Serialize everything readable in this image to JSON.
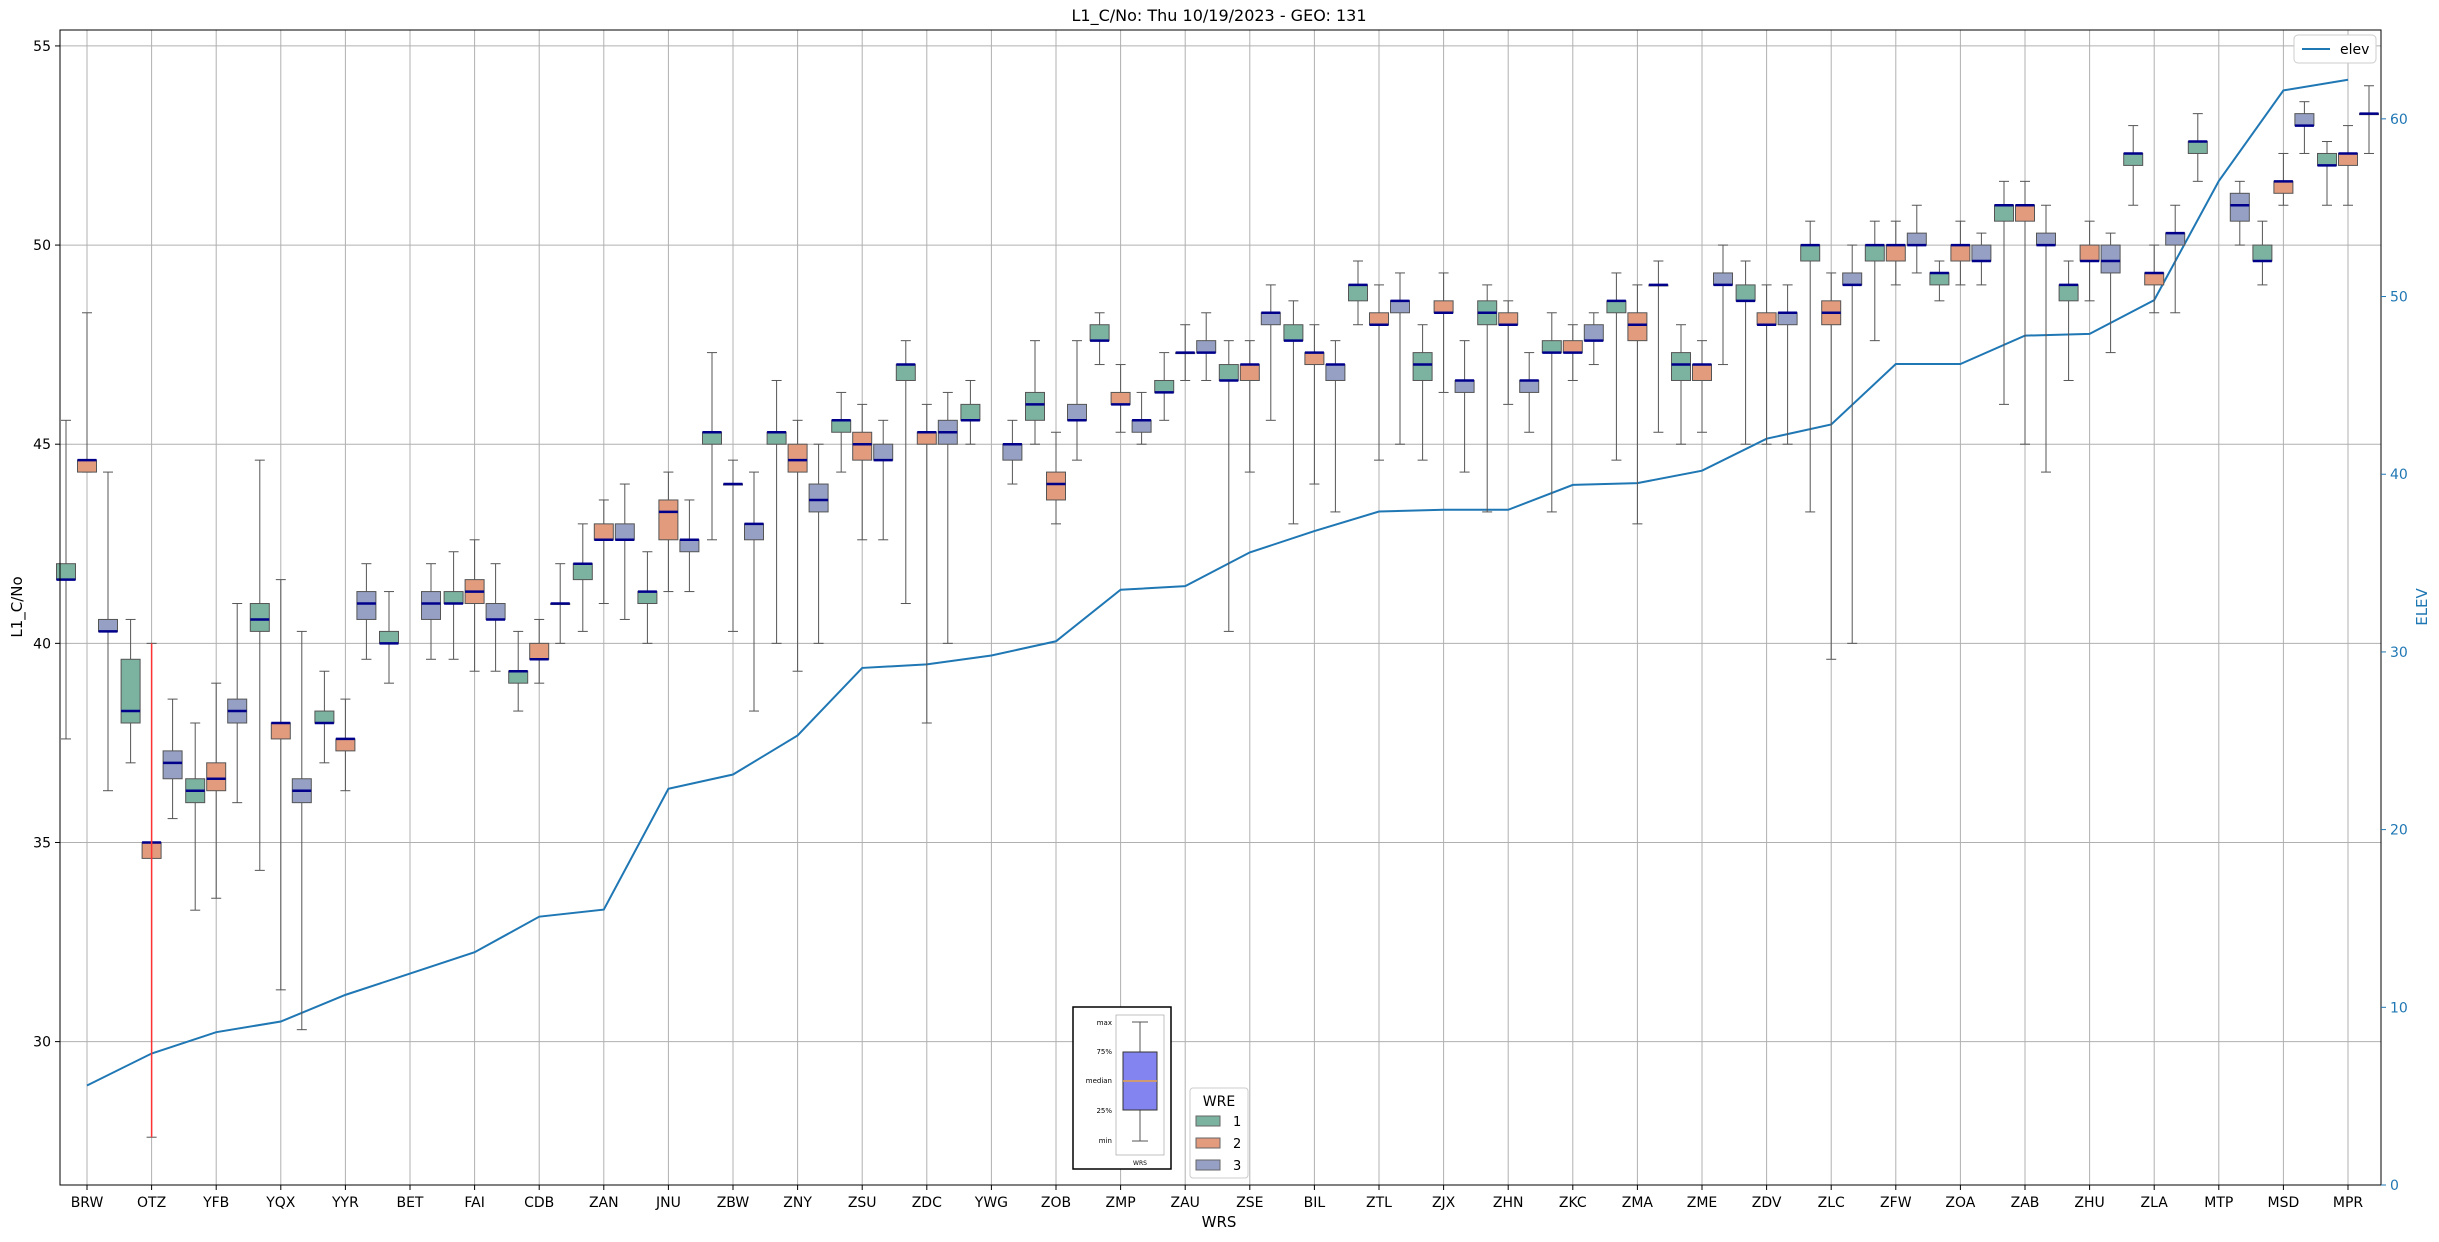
{
  "chart_data": {
    "type": "box",
    "title": "L1_C/No: Thu 10/19/2023 - GEO: 131",
    "xlabel": "WRS",
    "ylabel": "L1_C/No",
    "y2label": "ELEV",
    "ylim": [
      26.4,
      55.4
    ],
    "y2lim": [
      0,
      65
    ],
    "yticks": [
      30,
      35,
      40,
      45,
      50,
      55
    ],
    "y2ticks": [
      0,
      10,
      20,
      30,
      40,
      50,
      60
    ],
    "grid": true,
    "categories": [
      "BRW",
      "OTZ",
      "YFB",
      "YQX",
      "YYR",
      "BET",
      "FAI",
      "CDB",
      "ZAN",
      "JNU",
      "ZBW",
      "ZNY",
      "ZSU",
      "ZDC",
      "YWG",
      "ZOB",
      "ZMP",
      "ZAU",
      "ZSE",
      "BIL",
      "ZTL",
      "ZJX",
      "ZHN",
      "ZKC",
      "ZMA",
      "ZME",
      "ZDV",
      "ZLC",
      "ZFW",
      "ZOA",
      "ZAB",
      "ZHU",
      "ZLA",
      "MTP",
      "MSD",
      "MPR"
    ],
    "series_colors": {
      "1": "#7bb3a0",
      "2": "#e39b7d",
      "3": "#95a0c4"
    },
    "boxes": [
      {
        "station": "BRW",
        "wre": "1",
        "min": 37.6,
        "q1": 41.6,
        "median": 41.6,
        "q3": 42.0,
        "max": 45.6
      },
      {
        "station": "BRW",
        "wre": "2",
        "min": 44.3,
        "q1": 44.3,
        "median": 44.6,
        "q3": 44.6,
        "max": 48.3
      },
      {
        "station": "BRW",
        "wre": "3",
        "min": 36.3,
        "q1": 40.3,
        "median": 40.3,
        "q3": 40.6,
        "max": 44.3
      },
      {
        "station": "OTZ",
        "wre": "1",
        "min": 37.0,
        "q1": 38.0,
        "median": 38.3,
        "q3": 39.6,
        "max": 40.6
      },
      {
        "station": "OTZ",
        "wre": "2",
        "min": 27.6,
        "q1": 34.6,
        "median": 35.0,
        "q3": 35.0,
        "max": 40.0
      },
      {
        "station": "OTZ",
        "wre": "3",
        "min": 35.6,
        "q1": 36.6,
        "median": 37.0,
        "q3": 37.3,
        "max": 38.6
      },
      {
        "station": "YFB",
        "wre": "1",
        "min": 33.3,
        "q1": 36.0,
        "median": 36.3,
        "q3": 36.6,
        "max": 38.0
      },
      {
        "station": "YFB",
        "wre": "2",
        "min": 33.6,
        "q1": 36.3,
        "median": 36.6,
        "q3": 37.0,
        "max": 39.0
      },
      {
        "station": "YFB",
        "wre": "3",
        "min": 36.0,
        "q1": 38.0,
        "median": 38.3,
        "q3": 38.6,
        "max": 41.0
      },
      {
        "station": "YQX",
        "wre": "1",
        "min": 34.3,
        "q1": 40.3,
        "median": 40.6,
        "q3": 41.0,
        "max": 44.6
      },
      {
        "station": "YQX",
        "wre": "2",
        "min": 31.3,
        "q1": 37.6,
        "median": 38.0,
        "q3": 38.0,
        "max": 41.6
      },
      {
        "station": "YQX",
        "wre": "3",
        "min": 30.3,
        "q1": 36.0,
        "median": 36.3,
        "q3": 36.6,
        "max": 40.3
      },
      {
        "station": "YYR",
        "wre": "1",
        "min": 37.0,
        "q1": 38.0,
        "median": 38.0,
        "q3": 38.3,
        "max": 39.3
      },
      {
        "station": "YYR",
        "wre": "2",
        "min": 36.3,
        "q1": 37.3,
        "median": 37.6,
        "q3": 37.6,
        "max": 38.6
      },
      {
        "station": "YYR",
        "wre": "3",
        "min": 39.6,
        "q1": 40.6,
        "median": 41.0,
        "q3": 41.3,
        "max": 42.0
      },
      {
        "station": "BET",
        "wre": "1",
        "min": 39.0,
        "q1": 40.0,
        "median": 40.0,
        "q3": 40.3,
        "max": 41.3
      },
      {
        "station": "BET",
        "wre": "3",
        "min": 39.6,
        "q1": 40.6,
        "median": 41.0,
        "q3": 41.3,
        "max": 42.0
      },
      {
        "station": "FAI",
        "wre": "1",
        "min": 39.6,
        "q1": 41.0,
        "median": 41.0,
        "q3": 41.3,
        "max": 42.3
      },
      {
        "station": "FAI",
        "wre": "2",
        "min": 39.3,
        "q1": 41.0,
        "median": 41.3,
        "q3": 41.6,
        "max": 42.6
      },
      {
        "station": "FAI",
        "wre": "3",
        "min": 39.3,
        "q1": 40.6,
        "median": 40.6,
        "q3": 41.0,
        "max": 42.0
      },
      {
        "station": "CDB",
        "wre": "1",
        "min": 38.3,
        "q1": 39.0,
        "median": 39.3,
        "q3": 39.3,
        "max": 40.3
      },
      {
        "station": "CDB",
        "wre": "2",
        "min": 39.0,
        "q1": 39.6,
        "median": 39.6,
        "q3": 40.0,
        "max": 40.6
      },
      {
        "station": "CDB",
        "wre": "3",
        "min": 40.0,
        "q1": 41.0,
        "median": 41.0,
        "q3": 41.0,
        "max": 42.0
      },
      {
        "station": "ZAN",
        "wre": "1",
        "min": 40.3,
        "q1": 41.6,
        "median": 42.0,
        "q3": 42.0,
        "max": 43.0
      },
      {
        "station": "ZAN",
        "wre": "2",
        "min": 41.0,
        "q1": 42.6,
        "median": 42.6,
        "q3": 43.0,
        "max": 43.6
      },
      {
        "station": "ZAN",
        "wre": "3",
        "min": 40.6,
        "q1": 42.6,
        "median": 42.6,
        "q3": 43.0,
        "max": 44.0
      },
      {
        "station": "JNU",
        "wre": "1",
        "min": 40.0,
        "q1": 41.0,
        "median": 41.3,
        "q3": 41.3,
        "max": 42.3
      },
      {
        "station": "JNU",
        "wre": "2",
        "min": 41.3,
        "q1": 42.6,
        "median": 43.3,
        "q3": 43.6,
        "max": 44.3
      },
      {
        "station": "JNU",
        "wre": "3",
        "min": 41.3,
        "q1": 42.3,
        "median": 42.6,
        "q3": 42.6,
        "max": 43.6
      },
      {
        "station": "ZBW",
        "wre": "1",
        "min": 42.6,
        "q1": 45.0,
        "median": 45.3,
        "q3": 45.3,
        "max": 47.3
      },
      {
        "station": "ZBW",
        "wre": "2",
        "min": 40.3,
        "q1": 44.0,
        "median": 44.0,
        "q3": 44.0,
        "max": 44.6
      },
      {
        "station": "ZBW",
        "wre": "3",
        "min": 38.3,
        "q1": 42.6,
        "median": 43.0,
        "q3": 43.0,
        "max": 44.3
      },
      {
        "station": "ZNY",
        "wre": "1",
        "min": 40.0,
        "q1": 45.0,
        "median": 45.3,
        "q3": 45.3,
        "max": 46.6
      },
      {
        "station": "ZNY",
        "wre": "2",
        "min": 39.3,
        "q1": 44.3,
        "median": 44.6,
        "q3": 45.0,
        "max": 45.6
      },
      {
        "station": "ZNY",
        "wre": "3",
        "min": 40.0,
        "q1": 43.3,
        "median": 43.6,
        "q3": 44.0,
        "max": 45.0
      },
      {
        "station": "ZSU",
        "wre": "1",
        "min": 44.3,
        "q1": 45.3,
        "median": 45.6,
        "q3": 45.6,
        "max": 46.3
      },
      {
        "station": "ZSU",
        "wre": "2",
        "min": 42.6,
        "q1": 44.6,
        "median": 45.0,
        "q3": 45.3,
        "max": 46.0
      },
      {
        "station": "ZSU",
        "wre": "3",
        "min": 42.6,
        "q1": 44.6,
        "median": 44.6,
        "q3": 45.0,
        "max": 45.6
      },
      {
        "station": "ZDC",
        "wre": "1",
        "min": 41.0,
        "q1": 46.6,
        "median": 47.0,
        "q3": 47.0,
        "max": 47.6
      },
      {
        "station": "ZDC",
        "wre": "2",
        "min": 38.0,
        "q1": 45.0,
        "median": 45.3,
        "q3": 45.3,
        "max": 46.0
      },
      {
        "station": "ZDC",
        "wre": "3",
        "min": 40.0,
        "q1": 45.0,
        "median": 45.3,
        "q3": 45.6,
        "max": 46.3
      },
      {
        "station": "YWG",
        "wre": "1",
        "min": 45.0,
        "q1": 45.6,
        "median": 45.6,
        "q3": 46.0,
        "max": 46.6
      },
      {
        "station": "YWG",
        "wre": "3",
        "min": 44.0,
        "q1": 44.6,
        "median": 45.0,
        "q3": 45.0,
        "max": 45.6
      },
      {
        "station": "ZOB",
        "wre": "1",
        "min": 45.0,
        "q1": 45.6,
        "median": 46.0,
        "q3": 46.3,
        "max": 47.6
      },
      {
        "station": "ZOB",
        "wre": "2",
        "min": 43.0,
        "q1": 43.6,
        "median": 44.0,
        "q3": 44.3,
        "max": 45.3
      },
      {
        "station": "ZOB",
        "wre": "3",
        "min": 44.6,
        "q1": 45.6,
        "median": 45.6,
        "q3": 46.0,
        "max": 47.6
      },
      {
        "station": "ZMP",
        "wre": "1",
        "min": 47.0,
        "q1": 47.6,
        "median": 47.6,
        "q3": 48.0,
        "max": 48.3
      },
      {
        "station": "ZMP",
        "wre": "2",
        "min": 45.3,
        "q1": 46.0,
        "median": 46.0,
        "q3": 46.3,
        "max": 47.0
      },
      {
        "station": "ZMP",
        "wre": "3",
        "min": 45.0,
        "q1": 45.3,
        "median": 45.6,
        "q3": 45.6,
        "max": 46.3
      },
      {
        "station": "ZAU",
        "wre": "1",
        "min": 45.6,
        "q1": 46.3,
        "median": 46.3,
        "q3": 46.6,
        "max": 47.3
      },
      {
        "station": "ZAU",
        "wre": "2",
        "min": 46.6,
        "q1": 47.3,
        "median": 47.3,
        "q3": 47.3,
        "max": 48.0
      },
      {
        "station": "ZAU",
        "wre": "3",
        "min": 46.6,
        "q1": 47.3,
        "median": 47.3,
        "q3": 47.6,
        "max": 48.3
      },
      {
        "station": "ZSE",
        "wre": "1",
        "min": 40.3,
        "q1": 46.6,
        "median": 46.6,
        "q3": 47.0,
        "max": 47.6
      },
      {
        "station": "ZSE",
        "wre": "2",
        "min": 44.3,
        "q1": 46.6,
        "median": 47.0,
        "q3": 47.0,
        "max": 47.6
      },
      {
        "station": "ZSE",
        "wre": "3",
        "min": 45.6,
        "q1": 48.0,
        "median": 48.3,
        "q3": 48.3,
        "max": 49.0
      },
      {
        "station": "BIL",
        "wre": "1",
        "min": 43.0,
        "q1": 47.6,
        "median": 47.6,
        "q3": 48.0,
        "max": 48.6
      },
      {
        "station": "BIL",
        "wre": "2",
        "min": 44.0,
        "q1": 47.0,
        "median": 47.3,
        "q3": 47.3,
        "max": 48.0
      },
      {
        "station": "BIL",
        "wre": "3",
        "min": 43.3,
        "q1": 46.6,
        "median": 47.0,
        "q3": 47.0,
        "max": 47.6
      },
      {
        "station": "ZTL",
        "wre": "1",
        "min": 48.0,
        "q1": 48.6,
        "median": 49.0,
        "q3": 49.0,
        "max": 49.6
      },
      {
        "station": "ZTL",
        "wre": "2",
        "min": 44.6,
        "q1": 48.0,
        "median": 48.0,
        "q3": 48.3,
        "max": 49.0
      },
      {
        "station": "ZTL",
        "wre": "3",
        "min": 45.0,
        "q1": 48.3,
        "median": 48.6,
        "q3": 48.6,
        "max": 49.3
      },
      {
        "station": "ZJX",
        "wre": "1",
        "min": 44.6,
        "q1": 46.6,
        "median": 47.0,
        "q3": 47.3,
        "max": 48.0
      },
      {
        "station": "ZJX",
        "wre": "2",
        "min": 46.3,
        "q1": 48.3,
        "median": 48.3,
        "q3": 48.6,
        "max": 49.3
      },
      {
        "station": "ZJX",
        "wre": "3",
        "min": 44.3,
        "q1": 46.3,
        "median": 46.6,
        "q3": 46.6,
        "max": 47.6
      },
      {
        "station": "ZHN",
        "wre": "1",
        "min": 43.3,
        "q1": 48.0,
        "median": 48.3,
        "q3": 48.6,
        "max": 49.0
      },
      {
        "station": "ZHN",
        "wre": "2",
        "min": 46.0,
        "q1": 48.0,
        "median": 48.0,
        "q3": 48.3,
        "max": 48.6
      },
      {
        "station": "ZHN",
        "wre": "3",
        "min": 45.3,
        "q1": 46.3,
        "median": 46.6,
        "q3": 46.6,
        "max": 47.3
      },
      {
        "station": "ZKC",
        "wre": "1",
        "min": 43.3,
        "q1": 47.3,
        "median": 47.3,
        "q3": 47.6,
        "max": 48.3
      },
      {
        "station": "ZKC",
        "wre": "2",
        "min": 46.6,
        "q1": 47.3,
        "median": 47.3,
        "q3": 47.6,
        "max": 48.0
      },
      {
        "station": "ZKC",
        "wre": "3",
        "min": 47.0,
        "q1": 47.6,
        "median": 47.6,
        "q3": 48.0,
        "max": 48.3
      },
      {
        "station": "ZMA",
        "wre": "1",
        "min": 44.6,
        "q1": 48.3,
        "median": 48.6,
        "q3": 48.6,
        "max": 49.3
      },
      {
        "station": "ZMA",
        "wre": "2",
        "min": 43.0,
        "q1": 47.6,
        "median": 48.0,
        "q3": 48.3,
        "max": 49.0
      },
      {
        "station": "ZMA",
        "wre": "3",
        "min": 45.3,
        "q1": 49.0,
        "median": 49.0,
        "q3": 49.0,
        "max": 49.6
      },
      {
        "station": "ZME",
        "wre": "1",
        "min": 45.0,
        "q1": 46.6,
        "median": 47.0,
        "q3": 47.3,
        "max": 48.0
      },
      {
        "station": "ZME",
        "wre": "2",
        "min": 45.3,
        "q1": 46.6,
        "median": 47.0,
        "q3": 47.0,
        "max": 47.6
      },
      {
        "station": "ZME",
        "wre": "3",
        "min": 47.0,
        "q1": 49.0,
        "median": 49.0,
        "q3": 49.3,
        "max": 50.0
      },
      {
        "station": "ZDV",
        "wre": "1",
        "min": 45.0,
        "q1": 48.6,
        "median": 48.6,
        "q3": 49.0,
        "max": 49.6
      },
      {
        "station": "ZDV",
        "wre": "2",
        "min": 45.0,
        "q1": 48.0,
        "median": 48.0,
        "q3": 48.3,
        "max": 49.0
      },
      {
        "station": "ZDV",
        "wre": "3",
        "min": 45.0,
        "q1": 48.0,
        "median": 48.3,
        "q3": 48.3,
        "max": 49.0
      },
      {
        "station": "ZLC",
        "wre": "1",
        "min": 43.3,
        "q1": 49.6,
        "median": 50.0,
        "q3": 50.0,
        "max": 50.6
      },
      {
        "station": "ZLC",
        "wre": "2",
        "min": 39.6,
        "q1": 48.0,
        "median": 48.3,
        "q3": 48.6,
        "max": 49.3
      },
      {
        "station": "ZLC",
        "wre": "3",
        "min": 40.0,
        "q1": 49.0,
        "median": 49.0,
        "q3": 49.3,
        "max": 50.0
      },
      {
        "station": "ZFW",
        "wre": "1",
        "min": 47.6,
        "q1": 49.6,
        "median": 50.0,
        "q3": 50.0,
        "max": 50.6
      },
      {
        "station": "ZFW",
        "wre": "2",
        "min": 49.0,
        "q1": 49.6,
        "median": 50.0,
        "q3": 50.0,
        "max": 50.6
      },
      {
        "station": "ZFW",
        "wre": "3",
        "min": 49.3,
        "q1": 50.0,
        "median": 50.0,
        "q3": 50.3,
        "max": 51.0
      },
      {
        "station": "ZOA",
        "wre": "1",
        "min": 48.6,
        "q1": 49.0,
        "median": 49.3,
        "q3": 49.3,
        "max": 49.6
      },
      {
        "station": "ZOA",
        "wre": "2",
        "min": 49.0,
        "q1": 49.6,
        "median": 50.0,
        "q3": 50.0,
        "max": 50.6
      },
      {
        "station": "ZOA",
        "wre": "3",
        "min": 49.0,
        "q1": 49.6,
        "median": 49.6,
        "q3": 50.0,
        "max": 50.3
      },
      {
        "station": "ZAB",
        "wre": "1",
        "min": 46.0,
        "q1": 50.6,
        "median": 51.0,
        "q3": 51.0,
        "max": 51.6
      },
      {
        "station": "ZAB",
        "wre": "2",
        "min": 45.0,
        "q1": 50.6,
        "median": 51.0,
        "q3": 51.0,
        "max": 51.6
      },
      {
        "station": "ZAB",
        "wre": "3",
        "min": 44.3,
        "q1": 50.0,
        "median": 50.0,
        "q3": 50.3,
        "max": 51.0
      },
      {
        "station": "ZHU",
        "wre": "1",
        "min": 46.6,
        "q1": 48.6,
        "median": 49.0,
        "q3": 49.0,
        "max": 49.6
      },
      {
        "station": "ZHU",
        "wre": "2",
        "min": 48.6,
        "q1": 49.6,
        "median": 49.6,
        "q3": 50.0,
        "max": 50.6
      },
      {
        "station": "ZHU",
        "wre": "3",
        "min": 47.3,
        "q1": 49.3,
        "median": 49.6,
        "q3": 50.0,
        "max": 50.3
      },
      {
        "station": "ZLA",
        "wre": "1",
        "min": 51.0,
        "q1": 52.0,
        "median": 52.3,
        "q3": 52.3,
        "max": 53.0
      },
      {
        "station": "ZLA",
        "wre": "2",
        "min": 48.3,
        "q1": 49.0,
        "median": 49.3,
        "q3": 49.3,
        "max": 50.0
      },
      {
        "station": "ZLA",
        "wre": "3",
        "min": 48.3,
        "q1": 50.0,
        "median": 50.3,
        "q3": 50.3,
        "max": 51.0
      },
      {
        "station": "MTP",
        "wre": "1",
        "min": 51.6,
        "q1": 52.3,
        "median": 52.6,
        "q3": 52.6,
        "max": 53.3
      },
      {
        "station": "MTP",
        "wre": "3",
        "min": 50.0,
        "q1": 50.6,
        "median": 51.0,
        "q3": 51.3,
        "max": 51.6
      },
      {
        "station": "MSD",
        "wre": "1",
        "min": 49.0,
        "q1": 49.6,
        "median": 49.6,
        "q3": 50.0,
        "max": 50.6
      },
      {
        "station": "MSD",
        "wre": "2",
        "min": 51.0,
        "q1": 51.3,
        "median": 51.6,
        "q3": 51.6,
        "max": 52.3
      },
      {
        "station": "MSD",
        "wre": "3",
        "min": 52.3,
        "q1": 53.0,
        "median": 53.0,
        "q3": 53.3,
        "max": 53.6
      },
      {
        "station": "MPR",
        "wre": "1",
        "min": 51.0,
        "q1": 52.0,
        "median": 52.0,
        "q3": 52.3,
        "max": 52.6
      },
      {
        "station": "MPR",
        "wre": "2",
        "min": 51.0,
        "q1": 52.0,
        "median": 52.3,
        "q3": 52.3,
        "max": 53.0
      },
      {
        "station": "MPR",
        "wre": "3",
        "min": 52.3,
        "q1": 53.3,
        "median": 53.3,
        "q3": 53.3,
        "max": 54.0
      }
    ],
    "elev_series": {
      "name": "elev",
      "color": "#1f77b4",
      "values": [
        5.6,
        7.4,
        8.6,
        9.2,
        10.7,
        11.9,
        13.1,
        15.1,
        15.5,
        22.3,
        23.1,
        25.3,
        29.1,
        29.3,
        29.8,
        30.6,
        33.5,
        33.7,
        35.6,
        36.8,
        37.9,
        38.0,
        38.0,
        39.4,
        39.5,
        40.2,
        42.0,
        42.8,
        46.2,
        46.2,
        47.8,
        47.9,
        49.8,
        56.5,
        61.6,
        62.2
      ]
    },
    "annotations": [
      {
        "type": "segment",
        "station": "OTZ",
        "from": 27.6,
        "to": 40.0,
        "color": "#ff3333"
      }
    ],
    "legend_wre": {
      "title": "WRE",
      "entries": [
        "1",
        "2",
        "3"
      ],
      "placement": "bottom-center"
    },
    "legend_elev": {
      "entries": [
        "elev"
      ],
      "placement": "top-right"
    },
    "key_box_labels": [
      "max",
      "75%",
      "median",
      "25%",
      "min"
    ],
    "key_box_xlabel": "WRS"
  }
}
